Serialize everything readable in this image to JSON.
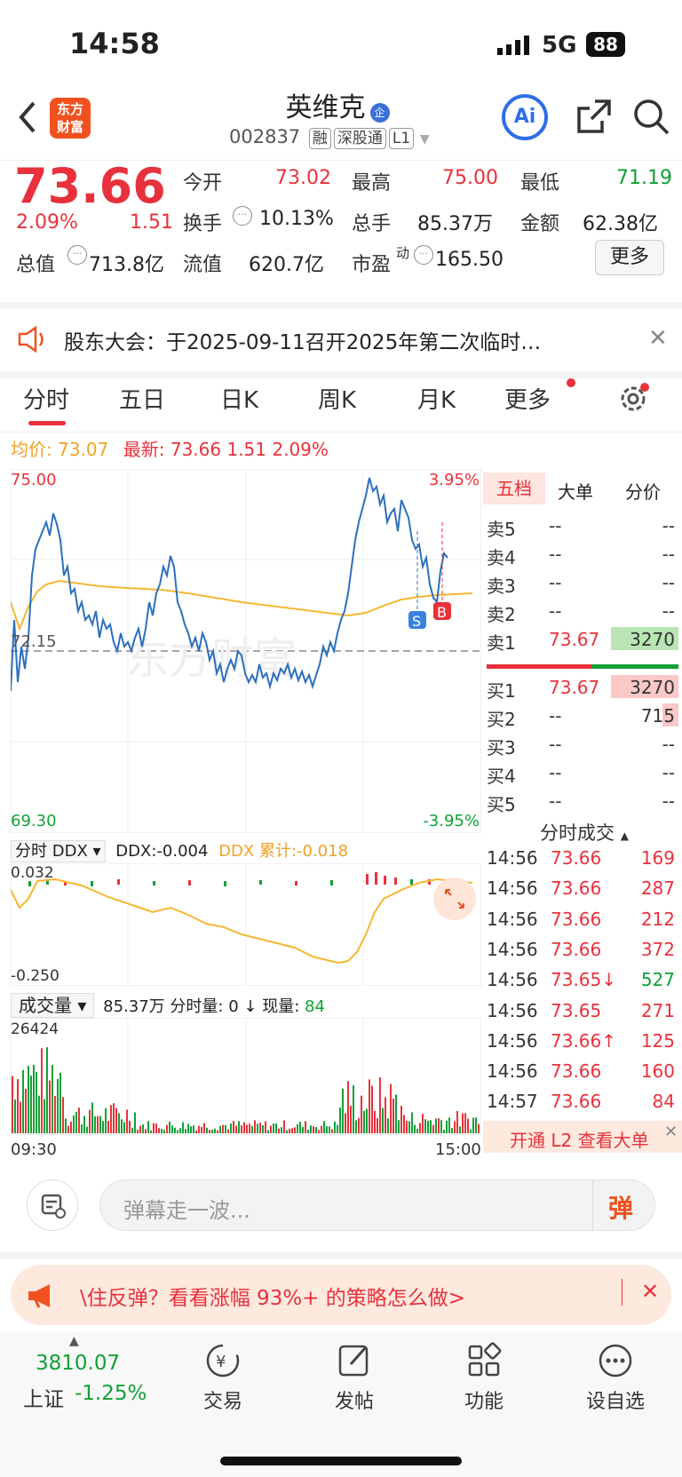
{
  "status": {
    "time": "14:58",
    "network": "5G",
    "battery": "88"
  },
  "header": {
    "title": "英维克",
    "title_badge": "企",
    "code": "002837",
    "tags": [
      "融",
      "深股通",
      "L1"
    ],
    "ai_label": "Ai"
  },
  "quote": {
    "price": "73.66",
    "change_pct": "2.09%",
    "change": "1.51",
    "open_label": "今开",
    "open": "73.02",
    "high_label": "最高",
    "high": "75.00",
    "low_label": "最低",
    "low": "71.19",
    "turnover_label": "换手",
    "turnover": "10.13%",
    "volume_label": "总手",
    "volume": "85.37万",
    "amount_label": "金额",
    "amount": "62.38亿",
    "mcap_label": "总值",
    "mcap": "713.8亿",
    "float_label": "流值",
    "float_mcap": "620.7亿",
    "pe_label": "市盈",
    "pe_sup": "动",
    "pe": "165.50",
    "more": "更多"
  },
  "notice": {
    "text": "股东大会：于2025-09-11召开2025年第二次临时…"
  },
  "tabs": [
    "分时",
    "五日",
    "日K",
    "周K",
    "月K",
    "更多"
  ],
  "chart": {
    "avg_label": "均价:",
    "avg": "73.07",
    "latest_label": "最新:",
    "latest": "73.66",
    "latest_change": "1.51",
    "latest_pct": "2.09%",
    "y_top": "75.00",
    "y_mid": "72.15",
    "y_bottom": "69.30",
    "pct_top": "3.95%",
    "pct_bottom": "-3.95%",
    "watermark": "东方财富",
    "marker_s": "S",
    "marker_b": "B",
    "ddx_selector": "分时 DDX",
    "ddx": "DDX:-0.004",
    "ddx_acc": "DDX 累计:-0.018",
    "ddx_top": "0.032",
    "ddx_bottom": "-0.250",
    "vol_selector": "成交量",
    "vol_total": "85.37万",
    "vol_period_label": "分时量:",
    "vol_period": "0 ↓",
    "vol_now_label": "现量:",
    "vol_now": "84",
    "vol_max": "26424",
    "time_start": "09:30",
    "time_end": "15:00"
  },
  "orderbook": {
    "tabs": [
      "五档",
      "大单",
      "分价"
    ],
    "asks": [
      {
        "label": "卖5",
        "price": "--",
        "vol": "--"
      },
      {
        "label": "卖4",
        "price": "--",
        "vol": "--"
      },
      {
        "label": "卖3",
        "price": "--",
        "vol": "--"
      },
      {
        "label": "卖2",
        "price": "--",
        "vol": "--"
      },
      {
        "label": "卖1",
        "price": "73.67",
        "vol": "3270"
      }
    ],
    "bids": [
      {
        "label": "买1",
        "price": "73.67",
        "vol": "3270"
      },
      {
        "label": "买2",
        "price": "--",
        "vol": "715"
      },
      {
        "label": "买3",
        "price": "--",
        "vol": "--"
      },
      {
        "label": "买4",
        "price": "--",
        "vol": "--"
      },
      {
        "label": "买5",
        "price": "--",
        "vol": "--"
      }
    ]
  },
  "trades": {
    "title": "分时成交",
    "rows": [
      {
        "time": "14:56",
        "price": "73.66",
        "vol": "169"
      },
      {
        "time": "14:56",
        "price": "73.66",
        "vol": "287"
      },
      {
        "time": "14:56",
        "price": "73.66",
        "vol": "212"
      },
      {
        "time": "14:56",
        "price": "73.66",
        "vol": "372"
      },
      {
        "time": "14:56",
        "price": "73.65↓",
        "vol": "527"
      },
      {
        "time": "14:56",
        "price": "73.65",
        "vol": "271"
      },
      {
        "time": "14:56",
        "price": "73.66↑",
        "vol": "125"
      },
      {
        "time": "14:56",
        "price": "73.66",
        "vol": "160"
      },
      {
        "time": "14:57",
        "price": "73.66",
        "vol": "84"
      }
    ],
    "l2_banner": "开通 L2 查看大单"
  },
  "danmu": {
    "placeholder": "弹幕走一波...",
    "button": "弹"
  },
  "promo": {
    "text": "\\住反弹？看看涨幅 93%+ 的策略怎么做>"
  },
  "bottom_nav": {
    "index_value": "3810.07",
    "index_name": "上证",
    "index_change": "-1.25%",
    "items": [
      "交易",
      "发帖",
      "功能",
      "设自选"
    ]
  },
  "colors": {
    "up": "#e8313c",
    "down": "#12a037",
    "price_line": "#2c6fbd",
    "avg_line": "#f5b731",
    "accent": "#e8313c"
  }
}
